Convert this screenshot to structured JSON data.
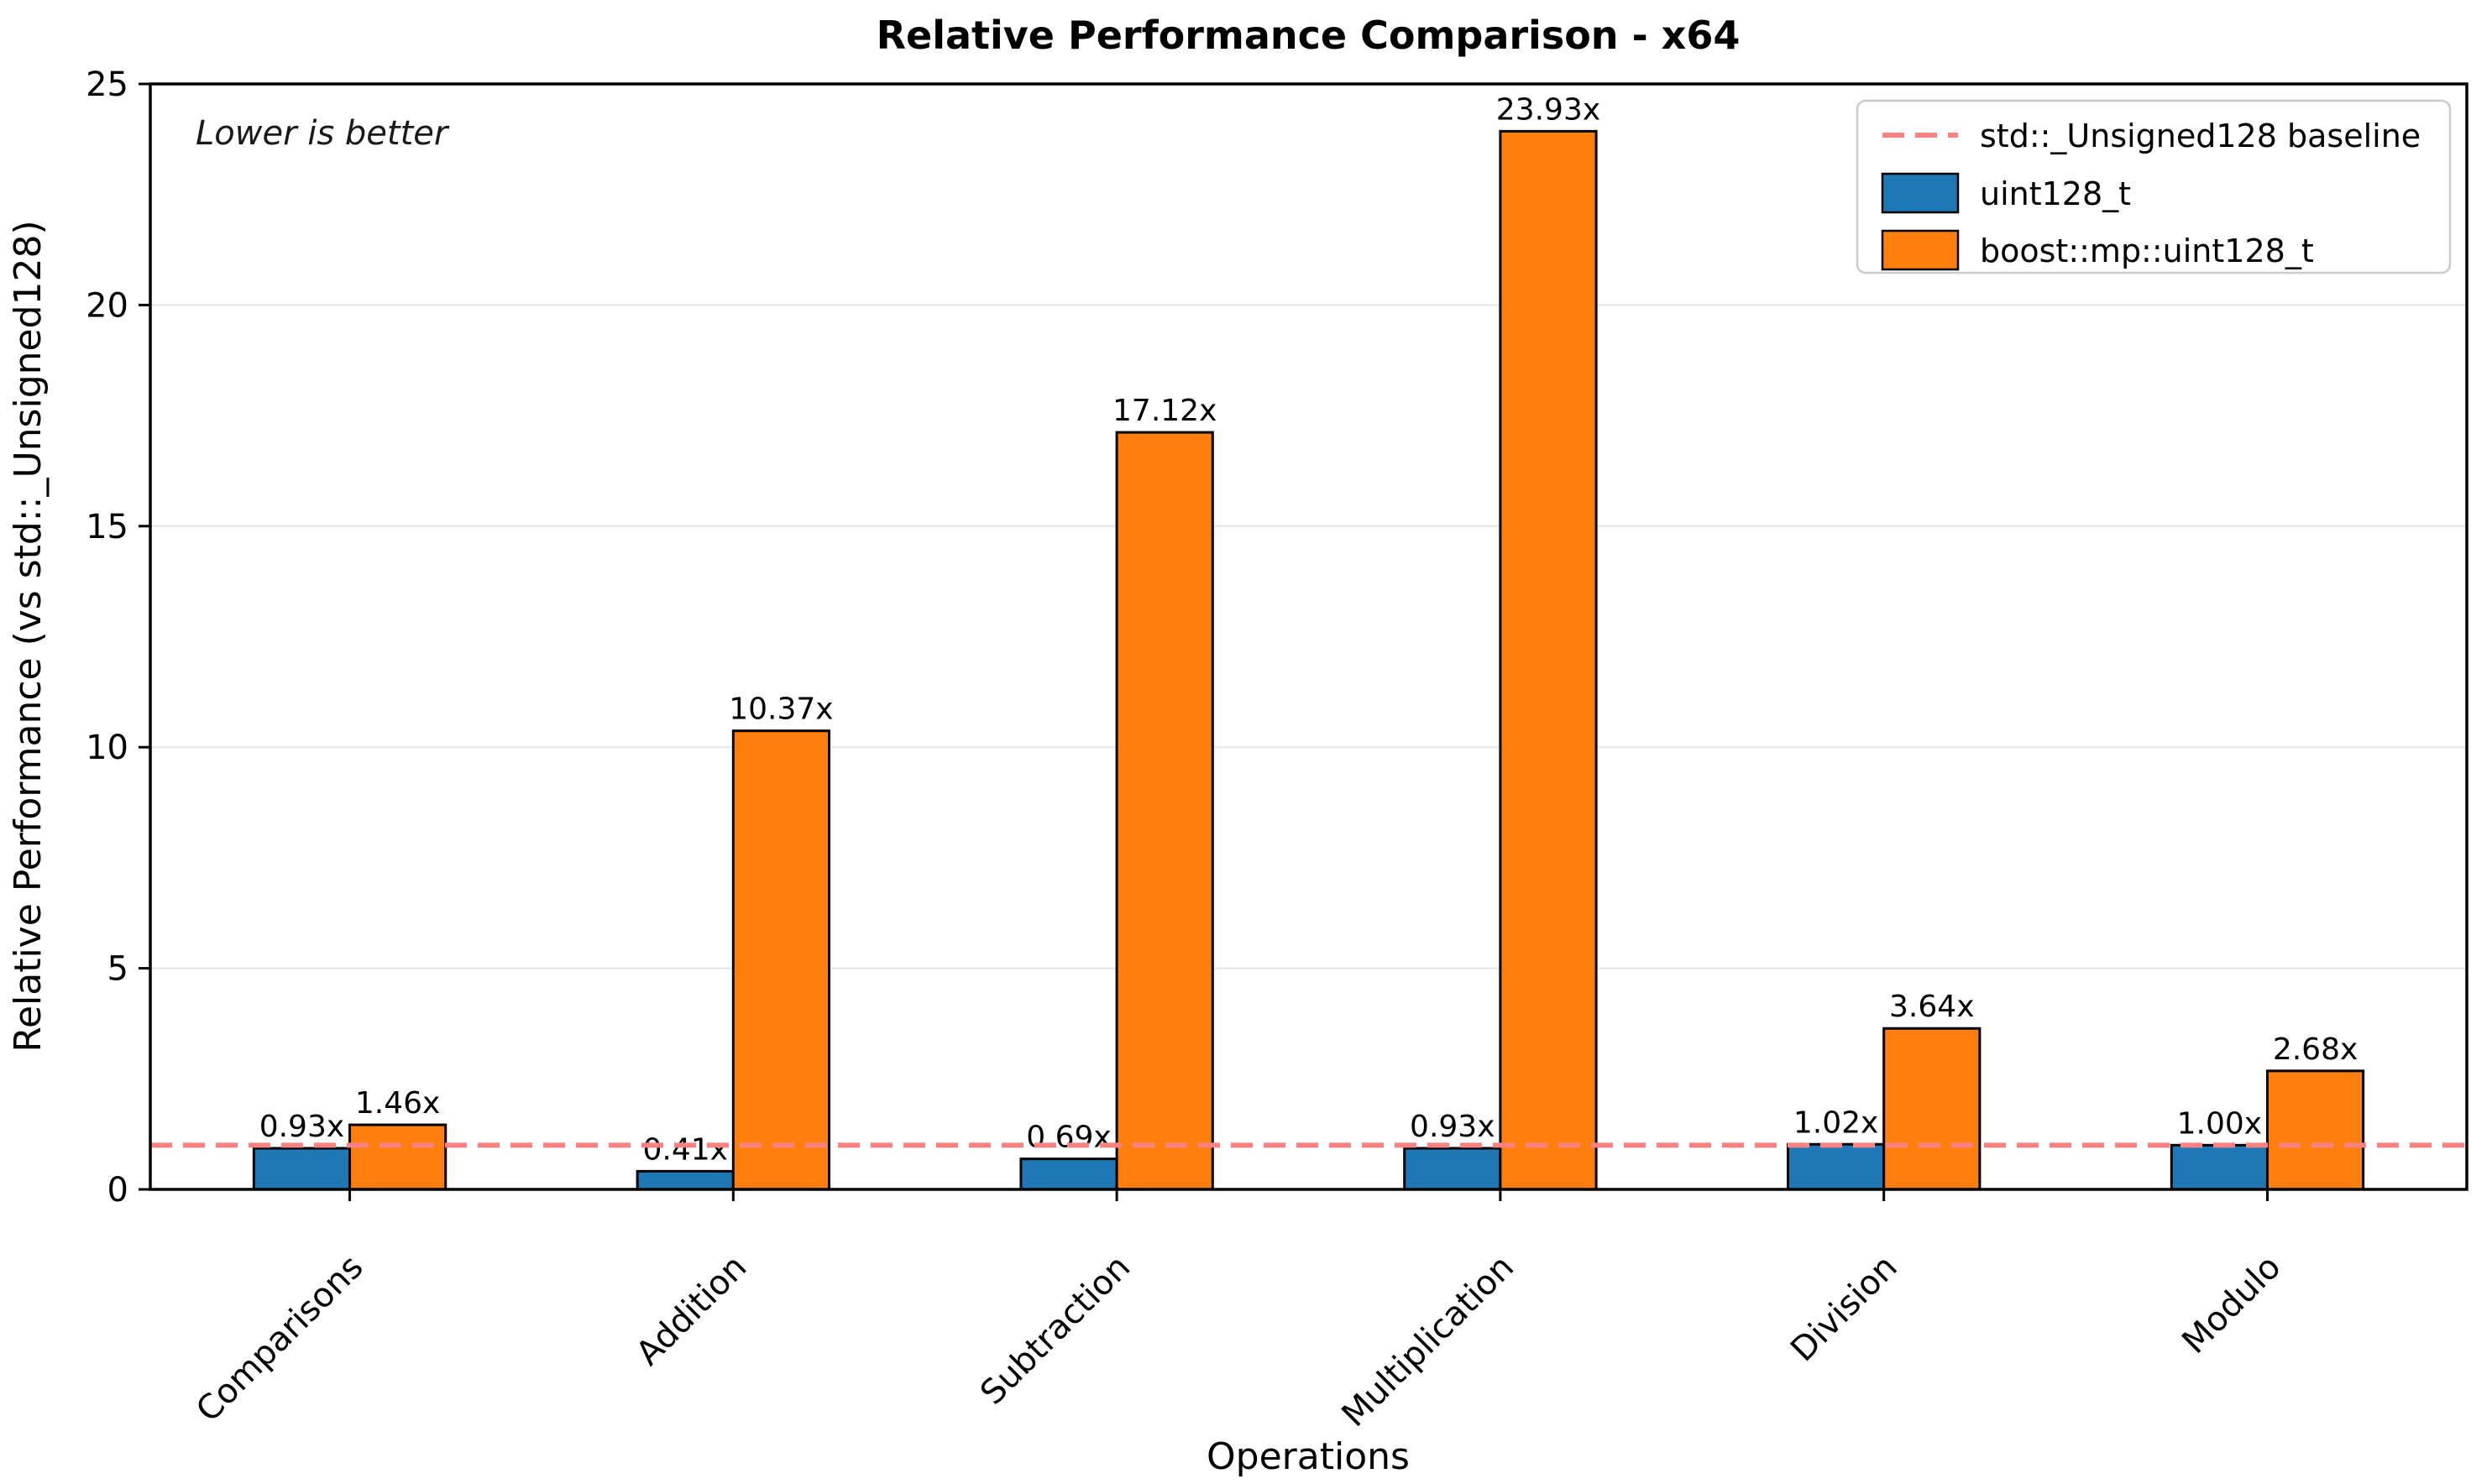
{
  "chart": {
    "title": "Relative Performance Comparison - x64",
    "annotation": "Lower is better",
    "xlabel": "Operations",
    "ylabel": "Relative Performance (vs std::_Unsigned128)"
  },
  "legend": {
    "baseline_label": "std::_Unsigned128 baseline",
    "series1_label": "uint128_t",
    "series2_label": "boost::mp::uint128_t"
  },
  "colors": {
    "blue": "#1f77b4",
    "orange": "#ff7f0e",
    "baseline_red": "#fc8282",
    "grid": "#e6e6e6",
    "bar_edge": "#000000",
    "spine": "#000000"
  },
  "chart_data": {
    "type": "bar",
    "title": "Relative Performance Comparison - x64",
    "xlabel": "Operations",
    "ylabel": "Relative Performance (vs std::_Unsigned128)",
    "annotation": "Lower is better",
    "categories": [
      "Comparisons",
      "Addition",
      "Subtraction",
      "Multiplication",
      "Division",
      "Modulo"
    ],
    "series": [
      {
        "name": "uint128_t",
        "color": "#1f77b4",
        "values": [
          0.93,
          0.41,
          0.69,
          0.93,
          1.02,
          1.0
        ]
      },
      {
        "name": "boost::mp::uint128_t",
        "color": "#ff7f0e",
        "values": [
          1.46,
          10.37,
          17.12,
          23.93,
          3.64,
          2.68
        ]
      }
    ],
    "value_label_suffix": "x",
    "baseline": {
      "value": 1.0,
      "label": "std::_Unsigned128 baseline",
      "color": "#fc8282",
      "style": "dashed"
    },
    "ylim": [
      0,
      25
    ],
    "yticks": [
      0,
      5,
      10,
      15,
      20,
      25
    ],
    "grid": true,
    "xtick_rotation": -45,
    "legend_position": "upper right"
  }
}
